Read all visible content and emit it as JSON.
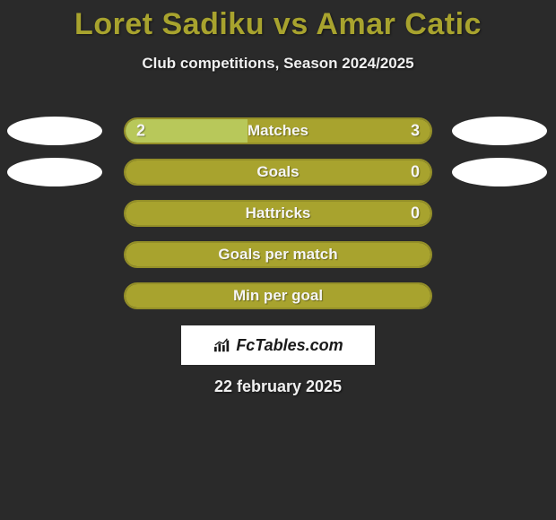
{
  "title": "Loret Sadiku vs Amar Catic",
  "subtitle": "Club competitions, Season 2024/2025",
  "date": "22 february 2025",
  "logo_text": "FcTables.com",
  "colors": {
    "background": "#2a2a2a",
    "title": "#a8a32e",
    "text": "#f0f0f0",
    "olive": "#a8a32e",
    "olive_border": "#948f28",
    "light_green": "#b8c85a",
    "avatar": "#ffffff",
    "logo_bg": "#ffffff",
    "logo_text": "#1a1a1a"
  },
  "rows": [
    {
      "label": "Matches",
      "left_value": "2",
      "right_value": "3",
      "left_pct": 40,
      "right_pct": 60,
      "left_color": "#b8c85a",
      "right_color": "#a8a32e",
      "show_left_avatar": true,
      "show_right_avatar": true,
      "show_values": true
    },
    {
      "label": "Goals",
      "left_value": "",
      "right_value": "0",
      "left_pct": 0,
      "right_pct": 100,
      "left_color": "#b8c85a",
      "right_color": "#a8a32e",
      "show_left_avatar": true,
      "show_right_avatar": true,
      "show_values": true
    },
    {
      "label": "Hattricks",
      "left_value": "",
      "right_value": "0",
      "left_pct": 0,
      "right_pct": 100,
      "left_color": "#b8c85a",
      "right_color": "#a8a32e",
      "show_left_avatar": false,
      "show_right_avatar": false,
      "show_values": true
    },
    {
      "label": "Goals per match",
      "left_value": "",
      "right_value": "",
      "left_pct": 0,
      "right_pct": 100,
      "left_color": "#b8c85a",
      "right_color": "#a8a32e",
      "show_left_avatar": false,
      "show_right_avatar": false,
      "show_values": false
    },
    {
      "label": "Min per goal",
      "left_value": "",
      "right_value": "",
      "left_pct": 0,
      "right_pct": 100,
      "left_color": "#b8c85a",
      "right_color": "#a8a32e",
      "show_left_avatar": false,
      "show_right_avatar": false,
      "show_values": false
    }
  ]
}
